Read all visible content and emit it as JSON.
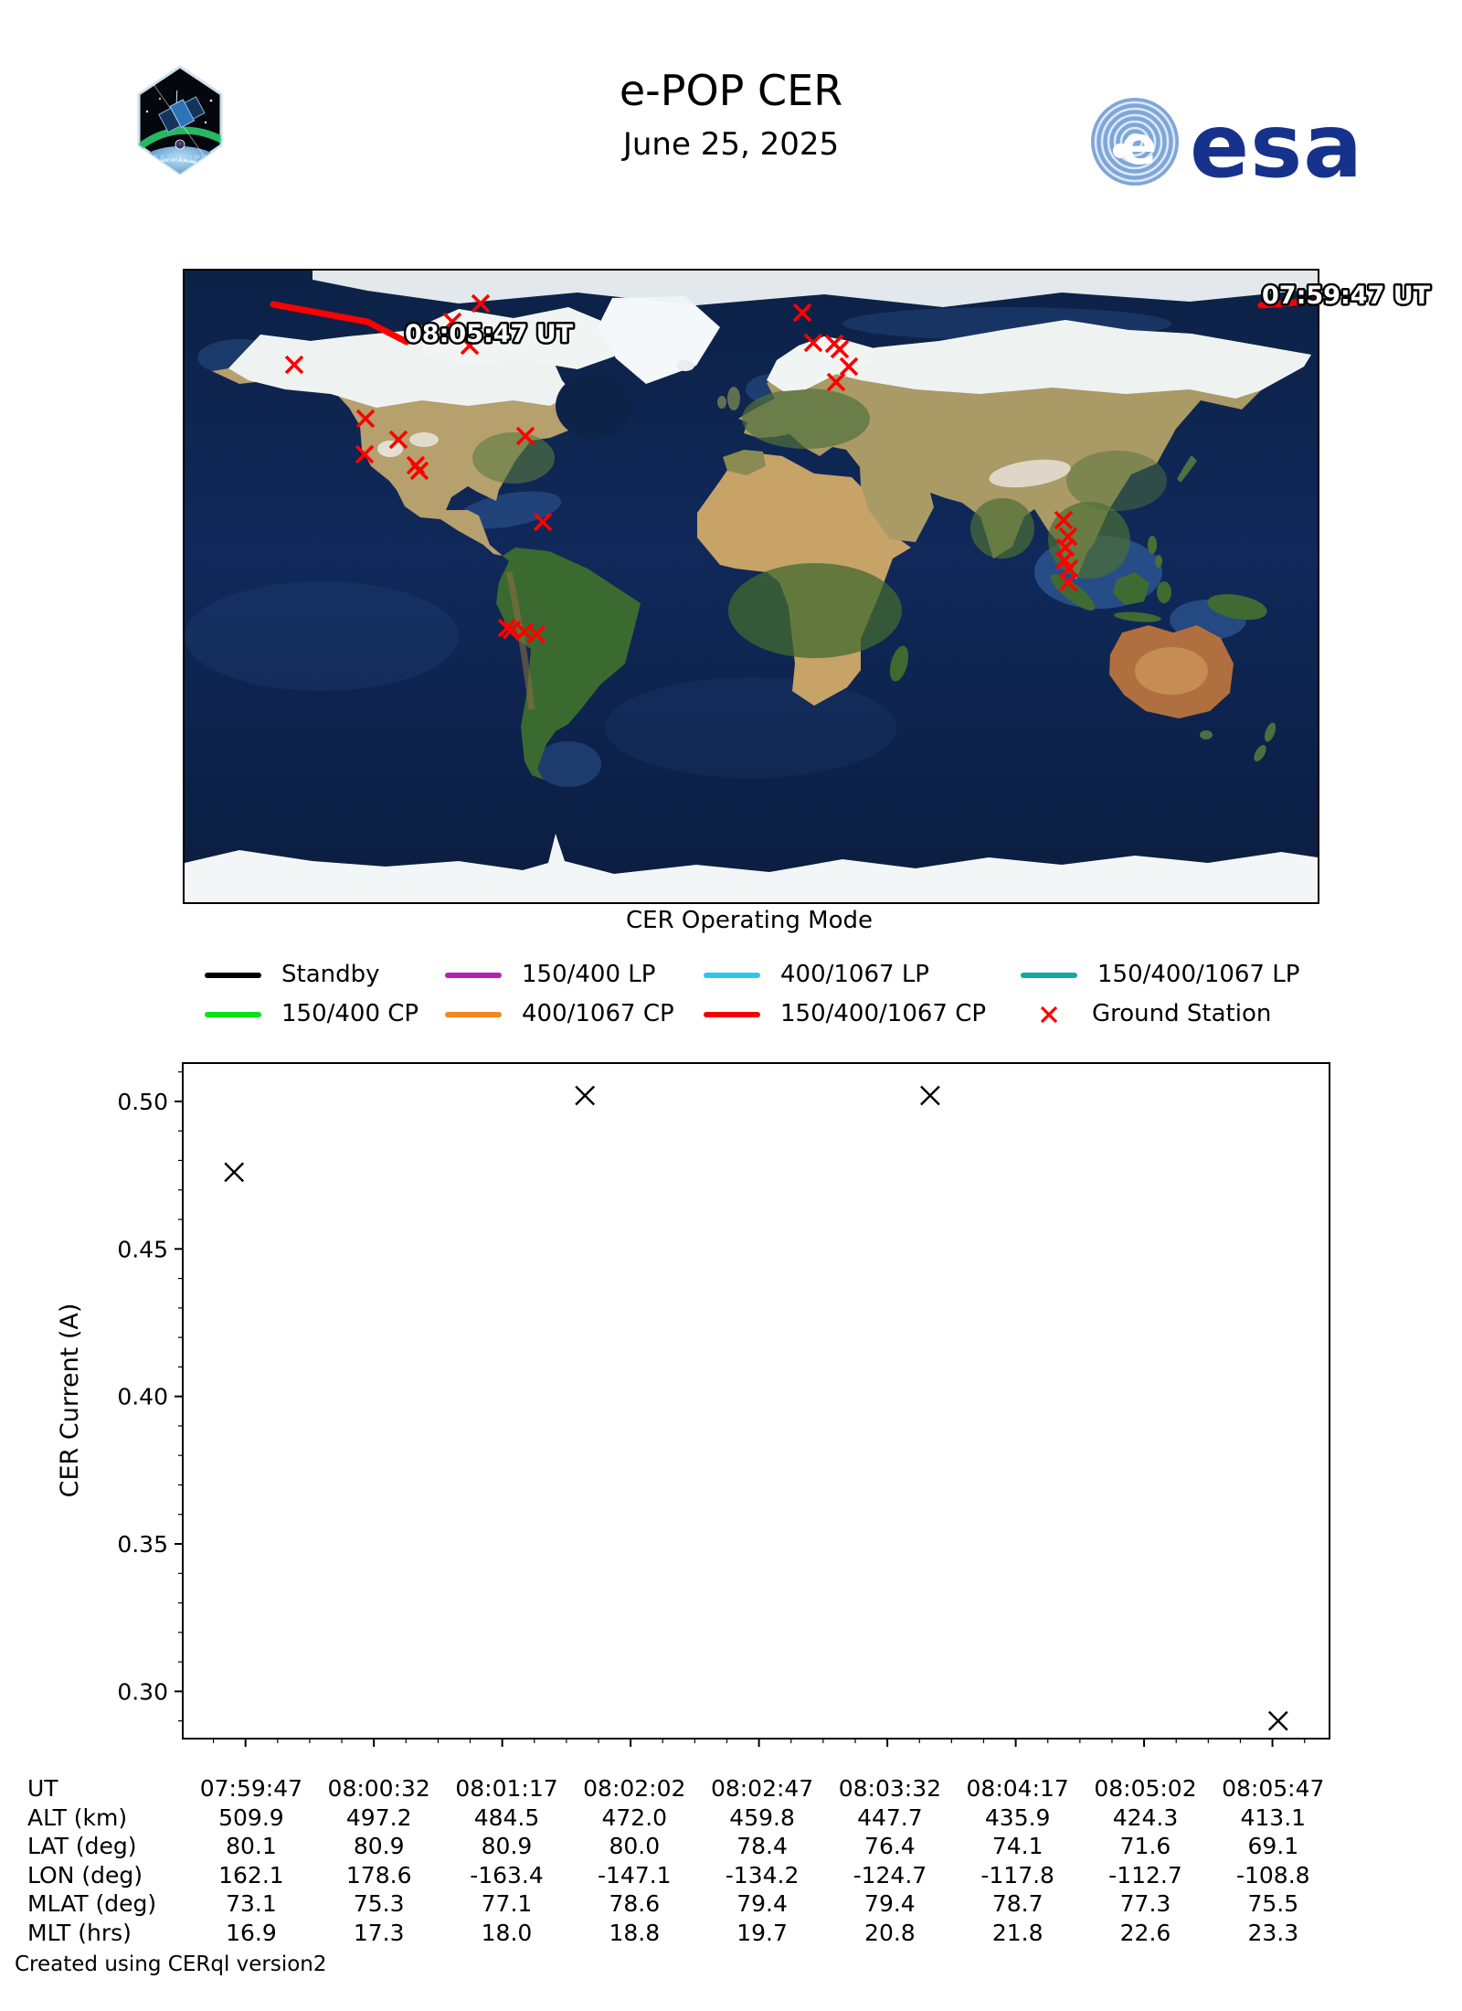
{
  "header": {
    "title": "e-POP CER",
    "date": "June 25, 2025",
    "mission_patch_label": "CASSIOPE",
    "esa_wordmark": "esa",
    "esa_color": "#16328c"
  },
  "map": {
    "start_time_label": "07:59:47 UT",
    "end_time_label": "08:05:47 UT",
    "track_color": "#ff0000",
    "ground_station_color": "#ff0000",
    "track_segments": [
      [
        [
          1178,
          38
        ],
        [
          1240,
          33
        ]
      ],
      [
        [
          97,
          37
        ],
        [
          200,
          56
        ],
        [
          243,
          78
        ]
      ]
    ],
    "ground_stations": [
      [
        324,
        36
      ],
      [
        293,
        56
      ],
      [
        312,
        82
      ],
      [
        120,
        103
      ],
      [
        198,
        162
      ],
      [
        234,
        185
      ],
      [
        197,
        201
      ],
      [
        253,
        213
      ],
      [
        257,
        219
      ],
      [
        373,
        181
      ],
      [
        392,
        275
      ],
      [
        353,
        391
      ],
      [
        358,
        393
      ],
      [
        372,
        395
      ],
      [
        385,
        398
      ],
      [
        676,
        46
      ],
      [
        688,
        79
      ],
      [
        711,
        80
      ],
      [
        717,
        86
      ],
      [
        727,
        105
      ],
      [
        713,
        122
      ],
      [
        962,
        273
      ],
      [
        967,
        291
      ],
      [
        964,
        303
      ],
      [
        963,
        317
      ],
      [
        968,
        326
      ],
      [
        967,
        341
      ]
    ]
  },
  "legend": {
    "title": "CER Operating Mode",
    "items": [
      {
        "label": "Standby",
        "color": "#000000",
        "marker": "line"
      },
      {
        "label": "150/400 LP",
        "color": "#b41fb4",
        "marker": "line"
      },
      {
        "label": "400/1067 LP",
        "color": "#2bc7f0",
        "marker": "line"
      },
      {
        "label": "150/400/1067 LP",
        "color": "#13a8a1",
        "marker": "line"
      },
      {
        "label": "150/400 CP",
        "color": "#0be112",
        "marker": "line"
      },
      {
        "label": "400/1067 CP",
        "color": "#f5861f",
        "marker": "line"
      },
      {
        "label": "150/400/1067 CP",
        "color": "#f40000",
        "marker": "line"
      },
      {
        "label": "Ground Station",
        "color": "#ff0000",
        "marker": "x"
      }
    ]
  },
  "chart_data": {
    "type": "scatter",
    "marker": "x",
    "marker_color": "#000000",
    "xlabel": "UT",
    "ylabel": "CER Current (A)",
    "xlim": [
      "07:59:25",
      "08:06:07"
    ],
    "ylim": [
      0.284,
      0.513
    ],
    "x_ticks": [
      "07:59:47",
      "08:00:32",
      "08:01:17",
      "08:02:02",
      "08:02:47",
      "08:03:32",
      "08:04:17",
      "08:05:02",
      "08:05:47"
    ],
    "y_ticks": [
      "0.30",
      "0.35",
      "0.40",
      "0.45",
      "0.50"
    ],
    "grid": false,
    "points": [
      {
        "ut": "07:59:43",
        "current_a": 0.476
      },
      {
        "ut": "08:01:46",
        "current_a": 0.502
      },
      {
        "ut": "08:03:47",
        "current_a": 0.502
      },
      {
        "ut": "08:05:49",
        "current_a": 0.29
      }
    ]
  },
  "table": {
    "rows": [
      {
        "label": "UT",
        "values": [
          "07:59:47",
          "08:00:32",
          "08:01:17",
          "08:02:02",
          "08:02:47",
          "08:03:32",
          "08:04:17",
          "08:05:02",
          "08:05:47"
        ]
      },
      {
        "label": "ALT (km)",
        "values": [
          "509.9",
          "497.2",
          "484.5",
          "472.0",
          "459.8",
          "447.7",
          "435.9",
          "424.3",
          "413.1"
        ]
      },
      {
        "label": "LAT (deg)",
        "values": [
          "80.1",
          "80.9",
          "80.9",
          "80.0",
          "78.4",
          "76.4",
          "74.1",
          "71.6",
          "69.1"
        ]
      },
      {
        "label": "LON (deg)",
        "values": [
          "162.1",
          "178.6",
          "-163.4",
          "-147.1",
          "-134.2",
          "-124.7",
          "-117.8",
          "-112.7",
          "-108.8"
        ]
      },
      {
        "label": "MLAT (deg)",
        "values": [
          "73.1",
          "75.3",
          "77.1",
          "78.6",
          "79.4",
          "79.4",
          "78.7",
          "77.3",
          "75.5"
        ]
      },
      {
        "label": "MLT (hrs)",
        "values": [
          "16.9",
          "17.3",
          "18.0",
          "18.8",
          "19.7",
          "20.8",
          "21.8",
          "22.6",
          "23.3"
        ]
      }
    ]
  },
  "footer": {
    "credit": "Created using CERql version2"
  }
}
